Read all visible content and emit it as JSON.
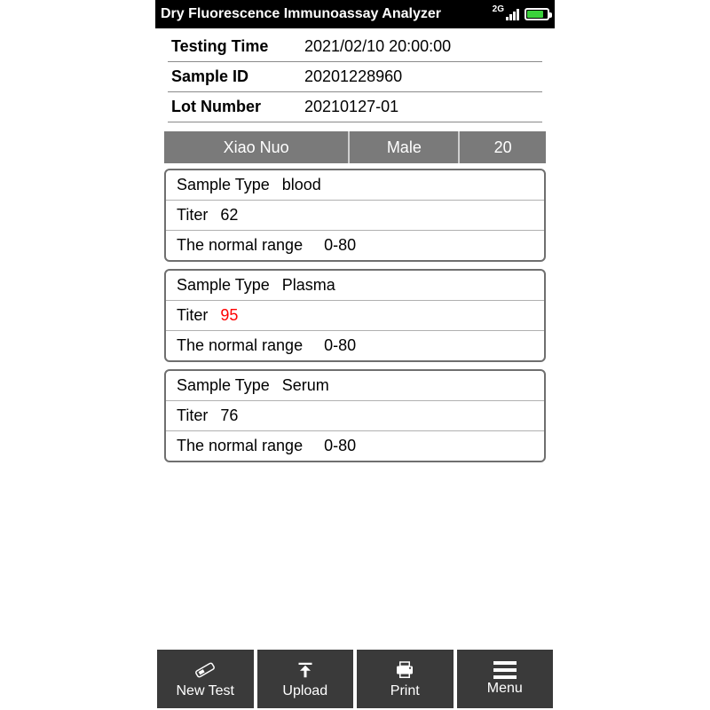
{
  "status": {
    "title": "Dry Fluorescence Immunoassay Analyzer",
    "network_label": "2G"
  },
  "info": {
    "testing_time_label": "Testing Time",
    "testing_time_value": "2021/02/10  20:00:00",
    "sample_id_label": "Sample ID",
    "sample_id_value": "20201228960",
    "lot_number_label": "Lot Number",
    "lot_number_value": "20210127-01"
  },
  "patient": {
    "name": "Xiao  Nuo",
    "sex": "Male",
    "age": "20"
  },
  "labels": {
    "sample_type": "Sample Type",
    "titer": "Titer",
    "normal_range": "The normal range"
  },
  "results": [
    {
      "sample_type": "blood",
      "titer": "62",
      "normal_range": "0-80",
      "alert": false
    },
    {
      "sample_type": "Plasma",
      "titer": "95",
      "normal_range": "0-80",
      "alert": true
    },
    {
      "sample_type": "Serum",
      "titer": "76",
      "normal_range": "0-80",
      "alert": false
    }
  ],
  "nav": {
    "new_test": "New Test",
    "upload": "Upload",
    "print": "Print",
    "menu": "Menu"
  },
  "colors": {
    "header_bg": "#000000",
    "patient_bar_bg": "#7a7a7a",
    "nav_bg": "#3a3a3a",
    "alert_color": "#ff0000",
    "battery_fill": "#3bd13b"
  }
}
